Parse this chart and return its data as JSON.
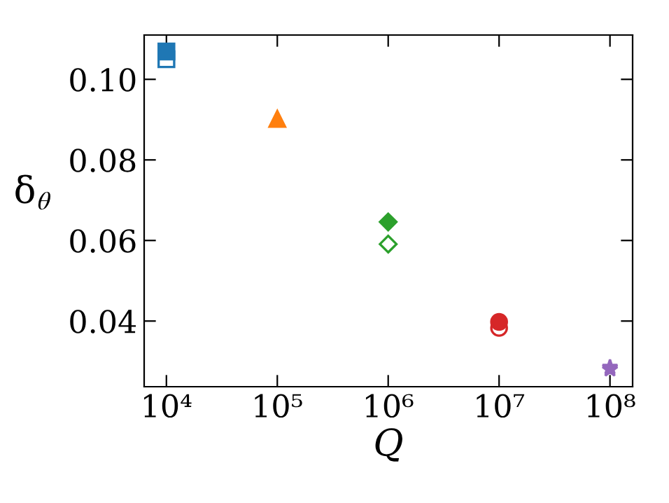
{
  "chart_data": {
    "type": "scatter",
    "xlabel": "Q",
    "ylabel": "δ$_{θ}$",
    "log": "x",
    "xlim": [
      6300,
      160000000
    ],
    "ylim": [
      0.0237,
      0.111
    ],
    "xticks": [
      {
        "value": 10000,
        "label": "10⁴"
      },
      {
        "value": 100000,
        "label": "10⁵"
      },
      {
        "value": 1000000,
        "label": "10⁶"
      },
      {
        "value": 10000000,
        "label": "10⁷"
      },
      {
        "value": 100000000,
        "label": "10⁸"
      }
    ],
    "yticks": [
      {
        "value": 0.04,
        "label": "0.04"
      },
      {
        "value": 0.06,
        "label": "0.06"
      },
      {
        "value": 0.08,
        "label": "0.08"
      },
      {
        "value": 0.1,
        "label": "0.10"
      }
    ],
    "grid": false,
    "legend": false,
    "series": [
      {
        "x": [
          10000,
          10000
        ],
        "values": [
          0.1069,
          0.105
        ],
        "color": "#1f77b4",
        "marker": "square"
      },
      {
        "x": [
          100000
        ],
        "values": [
          0.0902
        ],
        "color": "#ff7f0e",
        "marker": "triangle"
      },
      {
        "x": [
          1000000,
          1000000
        ],
        "values": [
          0.0646,
          0.0591
        ],
        "color": "#2ca02c",
        "marker": "diamond"
      },
      {
        "x": [
          10000000,
          10000000
        ],
        "values": [
          0.0398,
          0.0383
        ],
        "color": "#d62728",
        "marker": "circle"
      },
      {
        "x": [
          100000000,
          100000000
        ],
        "values": [
          0.0285,
          0.028
        ],
        "color": "#9467bd",
        "marker": "star"
      }
    ]
  }
}
